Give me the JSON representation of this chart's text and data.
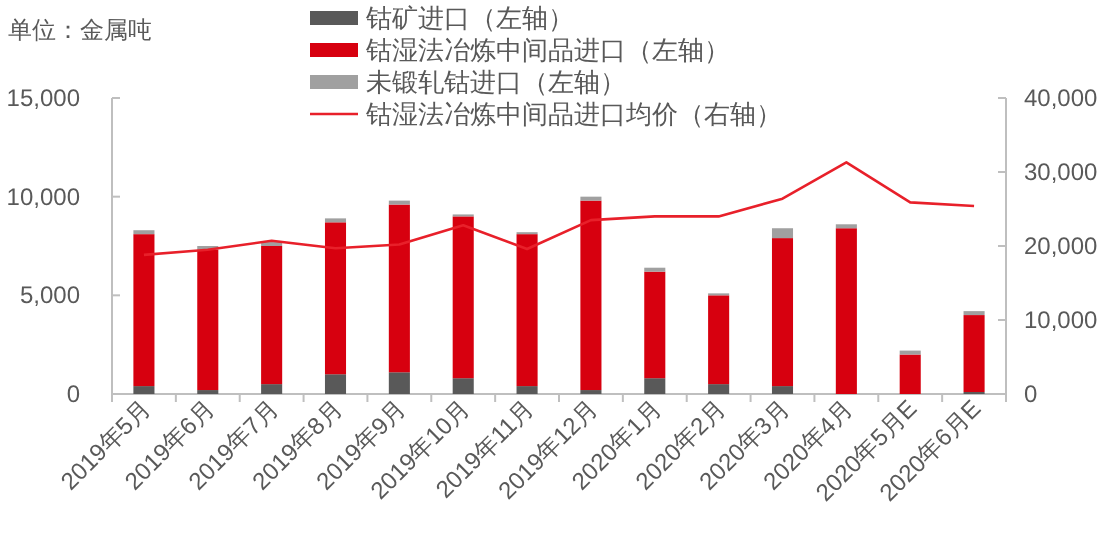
{
  "chart_data": {
    "type": "bar",
    "stacked": true,
    "ylabel": "单位：金属吨",
    "legend": "top",
    "categories": [
      "2019年5月",
      "2019年6月",
      "2019年7月",
      "2019年8月",
      "2019年9月",
      "2019年10月",
      "2019年11月",
      "2019年12月",
      "2020年1月",
      "2020年2月",
      "2020年3月",
      "2020年4月",
      "2020年5月E",
      "2020年6月E"
    ],
    "series": [
      {
        "name": "钴矿进口（左轴）",
        "color": "#595959",
        "values": [
          400,
          200,
          500,
          1000,
          1100,
          800,
          400,
          200,
          800,
          500,
          400,
          0,
          0,
          100
        ]
      },
      {
        "name": "钴湿法冶炼中间品进口（左轴）",
        "color": "#d7000f",
        "values": [
          7700,
          7100,
          7000,
          7700,
          8500,
          8200,
          7700,
          9600,
          5400,
          4500,
          7500,
          8400,
          2000,
          3900
        ]
      },
      {
        "name": "未锻轧钴进口（左轴）",
        "color": "#a0a0a0",
        "values": [
          200,
          200,
          200,
          200,
          200,
          100,
          100,
          200,
          200,
          100,
          500,
          200,
          200,
          200
        ]
      },
      {
        "name": "钴湿法冶炼中间品进口均价（右轴）",
        "type": "line",
        "axis": "y2",
        "color": "#e8202a",
        "values": [
          18800,
          19500,
          20700,
          19700,
          20200,
          22800,
          19600,
          23500,
          24000,
          24000,
          26400,
          31300,
          25900,
          25400
        ]
      }
    ],
    "ylim": [
      0,
      15000
    ],
    "yticks": [
      0,
      {
        "value": 5000,
        "label": "5,000"
      },
      {
        "value": 10000,
        "label": "10,000"
      },
      {
        "value": 15000,
        "label": "15,000"
      }
    ],
    "y2lim": [
      0,
      40000
    ],
    "y2ticks": [
      0,
      {
        "value": 10000,
        "label": "10,000"
      },
      {
        "value": 20000,
        "label": "20,000"
      },
      {
        "value": 30000,
        "label": "30,000"
      },
      {
        "value": 40000,
        "label": "40,000"
      }
    ]
  }
}
